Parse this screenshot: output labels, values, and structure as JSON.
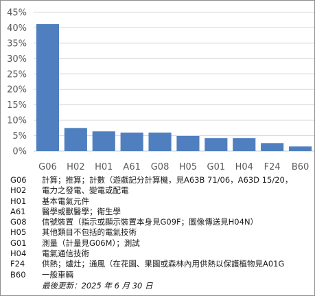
{
  "chart_data": {
    "type": "bar",
    "categories": [
      "G06",
      "H02",
      "H01",
      "A61",
      "G08",
      "H05",
      "G01",
      "H04",
      "F24",
      "B60"
    ],
    "values": [
      41.2,
      7.5,
      6.4,
      6.0,
      6.0,
      4.9,
      4.2,
      4.2,
      2.6,
      1.5
    ],
    "ylim": [
      0,
      45
    ],
    "y_ticks": [
      "0%",
      "5%",
      "10%",
      "15%",
      "20%",
      "25%",
      "30%",
      "35%",
      "40%",
      "45%"
    ],
    "grid": true,
    "color": "#4f7fbf"
  },
  "legend": [
    {
      "code": "G06",
      "desc": "計算；推算；計數（遊戲記分計算機，見A63B 71/06，A63D 15/20，"
    },
    {
      "code": "H02",
      "desc": "電力之發電、變電或配電"
    },
    {
      "code": "H01",
      "desc": "基本電氣元件"
    },
    {
      "code": "A61",
      "desc": "醫學或獸醫學；衛生學"
    },
    {
      "code": "G08",
      "desc": "信號裝置（指示或顯示裝置本身見G09F；圖像傳送見H04N）"
    },
    {
      "code": "H05",
      "desc": "其他類目不包括的電氣技術"
    },
    {
      "code": "G01",
      "desc": "測量（計量見G06M）；測試"
    },
    {
      "code": "H04",
      "desc": "電氣通信技術"
    },
    {
      "code": "F24",
      "desc": "供熱；爐灶；通風（在花園、果園或森林內用供熱以保護植物見A01G"
    },
    {
      "code": "B60",
      "desc": "一般車輛"
    }
  ],
  "footer": {
    "updated": "最後更新：2025 年 6 月 30 日"
  }
}
